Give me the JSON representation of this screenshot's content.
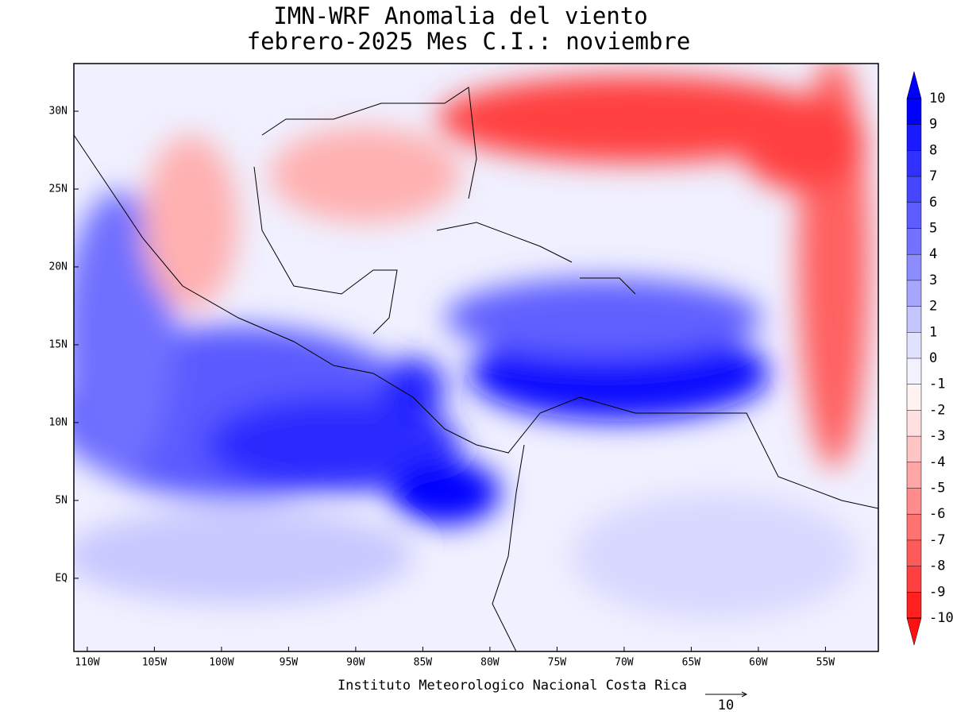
{
  "map": {
    "title": [
      "IMN-WRF Anomalia del viento",
      "febrero-2025 Mes C.I.: noviembre"
    ],
    "xlim": [
      -111,
      -51.06
    ],
    "ylim": [
      -4.7,
      33.06
    ],
    "xticks": [
      {
        "value": -110,
        "label": "110W"
      },
      {
        "value": -105,
        "label": "105W"
      },
      {
        "value": -100,
        "label": "100W"
      },
      {
        "value": -95,
        "label": "95W"
      },
      {
        "value": -90,
        "label": "90W"
      },
      {
        "value": -85,
        "label": "85W"
      },
      {
        "value": -80,
        "label": "80W"
      },
      {
        "value": -75,
        "label": "75W"
      },
      {
        "value": -70,
        "label": "70W"
      },
      {
        "value": -65,
        "label": "65W"
      },
      {
        "value": -60,
        "label": "60W"
      },
      {
        "value": -55,
        "label": "55W"
      }
    ],
    "yticks": [
      {
        "value": 0,
        "label": "EQ"
      },
      {
        "value": 5,
        "label": "5N"
      },
      {
        "value": 10,
        "label": "10N"
      },
      {
        "value": 15,
        "label": "15N"
      },
      {
        "value": 20,
        "label": "20N"
      },
      {
        "value": 25,
        "label": "25N"
      },
      {
        "value": 30,
        "label": "30N"
      }
    ],
    "colorbar": {
      "levels": [
        10,
        9,
        8,
        7,
        6,
        5,
        4,
        3,
        2,
        1,
        0,
        -1,
        -2,
        -3,
        -4,
        -5,
        -6,
        -7,
        -8,
        -9,
        -10
      ],
      "colors": [
        "#0000ff",
        "#0000ff",
        "#1a1aff",
        "#3030ff",
        "#4646ff",
        "#5c5cff",
        "#7272ff",
        "#8c8cff",
        "#a6a6ff",
        "#c4c4ff",
        "#e2e2ff",
        "#f2f2ff",
        "#fff2f2",
        "#ffe0e0",
        "#ffc4c4",
        "#ffa6a6",
        "#ff8c8c",
        "#ff7272",
        "#ff5a5a",
        "#ff4040",
        "#ff2020",
        "#ff1010"
      ]
    },
    "credit": "Instituto Meteorologico Nacional Costa Rica",
    "reference_vector": {
      "value": 10,
      "label": "10"
    }
  }
}
